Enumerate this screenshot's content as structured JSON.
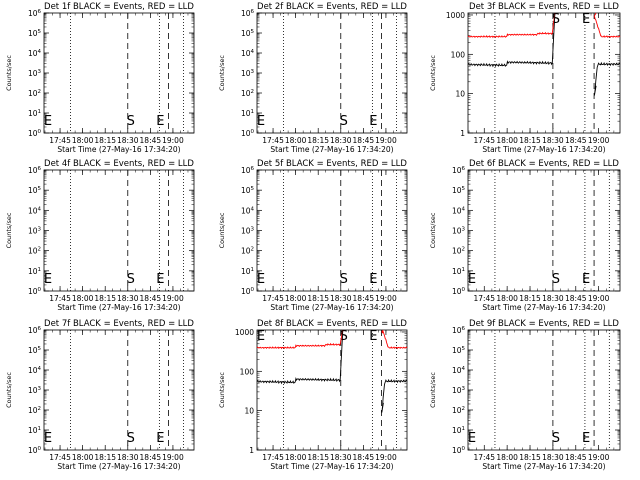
{
  "chart_data": {
    "type": "line",
    "ylabel": "Counts/sec",
    "xlabel": "Start Time (27-May-16 17:34:20)",
    "x_tick_labels": [
      "17:45",
      "18:00",
      "18:15",
      "18:30",
      "18:45",
      "19:00"
    ],
    "y_scale": "log",
    "series_names": [
      "Events",
      "LLD"
    ],
    "series_colors": {
      "Events": "#000000",
      "LLD": "#ff0000"
    },
    "empty_yticks": [
      "10^0",
      "10^1",
      "10^2",
      "10^3",
      "10^4",
      "10^5",
      "10^6"
    ],
    "data_yticks": [
      "1",
      "10",
      "100",
      "1000"
    ],
    "marker_S": "S",
    "marker_E": "E",
    "panels": [
      {
        "title": "Det 1f BLACK = Events, RED = LLD",
        "has_data": false,
        "start_label": "E"
      },
      {
        "title": "Det 2f BLACK = Events, RED = LLD",
        "has_data": false,
        "start_label": "E"
      },
      {
        "title": "Det 3f BLACK = Events, RED = LLD",
        "has_data": true,
        "start_label": ""
      },
      {
        "title": "Det 4f BLACK = Events, RED = LLD",
        "has_data": false,
        "start_label": "E"
      },
      {
        "title": "Det 5f BLACK = Events, RED = LLD",
        "has_data": false,
        "start_label": "E"
      },
      {
        "title": "Det 6f BLACK = Events, RED = LLD",
        "has_data": false,
        "start_label": "E"
      },
      {
        "title": "Det 7f BLACK = Events, RED = LLD",
        "has_data": false,
        "start_label": "E"
      },
      {
        "title": "Det 8f BLACK = Events, RED = LLD",
        "has_data": true,
        "start_label": "E"
      },
      {
        "title": "Det 9f BLACK = Events, RED = LLD",
        "has_data": false,
        "start_label": "E"
      }
    ]
  }
}
